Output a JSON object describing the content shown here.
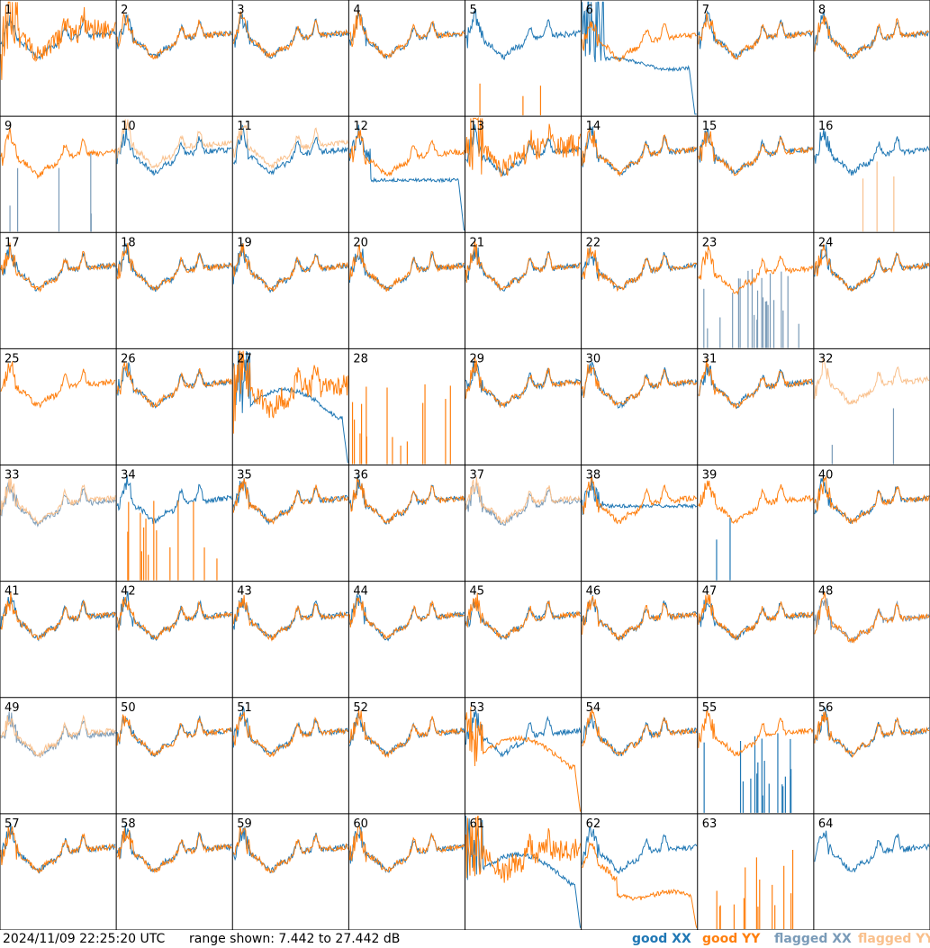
{
  "chart_data": {
    "type": "line",
    "panel_count": 64,
    "panel_labels": [
      "1",
      "2",
      "3",
      "4",
      "5",
      "6",
      "7",
      "8",
      "9",
      "10",
      "11",
      "12",
      "13",
      "14",
      "15",
      "16",
      "17",
      "18",
      "19",
      "20",
      "21",
      "22",
      "23",
      "24",
      "25",
      "26",
      "27",
      "28",
      "29",
      "30",
      "31",
      "32",
      "33",
      "34",
      "35",
      "36",
      "37",
      "38",
      "39",
      "40",
      "41",
      "42",
      "43",
      "44",
      "45",
      "46",
      "47",
      "48",
      "49",
      "50",
      "51",
      "52",
      "53",
      "54",
      "55",
      "56",
      "57",
      "58",
      "59",
      "60",
      "61",
      "62",
      "63",
      "64"
    ],
    "range_db": [
      7.442,
      27.442
    ],
    "series": [
      {
        "name": "good XX",
        "color": "#1f77b4"
      },
      {
        "name": "good YY",
        "color": "#ff7f0e"
      },
      {
        "name": "flagged XX",
        "color": "#7a9bb8"
      },
      {
        "name": "flagged YY",
        "color": "#f9c08c"
      }
    ],
    "panels": {
      "1": {
        "x": "good",
        "y": "good",
        "yShape": "hump",
        "yOff": -2,
        "yNoise": 4
      },
      "5": {
        "x": "good",
        "y": "spikes",
        "yOn": 0
      },
      "6": {
        "x": "decay",
        "y": "good",
        "yOff": 1
      },
      "9": {
        "x": "flagspikes",
        "y": "good",
        "yOff": 1
      },
      "10": {
        "x": "good",
        "y": "flagged",
        "yOff": -3
      },
      "11": {
        "x": "good",
        "y": "flagged",
        "yOff": -3
      },
      "12": {
        "x": "flat",
        "y": "good",
        "yOff": 1
      },
      "13": {
        "x": "good",
        "y": "good",
        "yOff": -2,
        "yNoise": 4
      },
      "16": {
        "x": "good",
        "y": "fspikes"
      },
      "23": {
        "x": "flagnoise",
        "y": "good",
        "yOff": 1
      },
      "25": {
        "x": "none",
        "y": "good"
      },
      "27": {
        "x": "hump",
        "y": "good",
        "yOff": 1,
        "yNoise": 4
      },
      "28": {
        "x": "none",
        "y": "spikes",
        "yOn": 1
      },
      "32": {
        "x": "flagspikes2",
        "y": "flagged",
        "yOff": -1
      },
      "33": {
        "x": "flagged",
        "y": "flagged"
      },
      "34": {
        "x": "good",
        "y": "spikes",
        "yOn": 1
      },
      "37": {
        "x": "flagged",
        "y": "flagged"
      },
      "38": {
        "x": "flat2",
        "y": "good"
      },
      "39": {
        "x": "spike1",
        "y": "good"
      },
      "48": {
        "x": "flagged",
        "y": "good",
        "yOff": 1
      },
      "49": {
        "x": "flagged",
        "y": "flagged"
      },
      "53": {
        "x": "good",
        "y": "hump",
        "yOff": 0
      },
      "55": {
        "x": "spikesdecay",
        "y": "good"
      },
      "61": {
        "x": "hump",
        "y": "good",
        "yOff": 1,
        "yNoise": 4
      },
      "62": {
        "x": "good",
        "y": "drop"
      },
      "63": {
        "x": "none",
        "y": "spikes",
        "yOn": 1
      },
      "64": {
        "x": "good",
        "y": "none"
      }
    }
  },
  "footer": {
    "timestamp": "2024/11/09 22:25:20 UTC",
    "range_text": "range shown: 7.442 to 27.442 dB",
    "legend": {
      "good_xx": "good XX",
      "good_yy": "good YY",
      "flagged_xx": "flagged XX",
      "flagged_yy": "flagged YY"
    }
  },
  "colors": {
    "good_xx": "#1f77b4",
    "good_yy": "#ff7f0e",
    "flagged_xx": "#7a9bb8",
    "flagged_yy": "#f9c08c",
    "grid_lines": "#000000"
  }
}
